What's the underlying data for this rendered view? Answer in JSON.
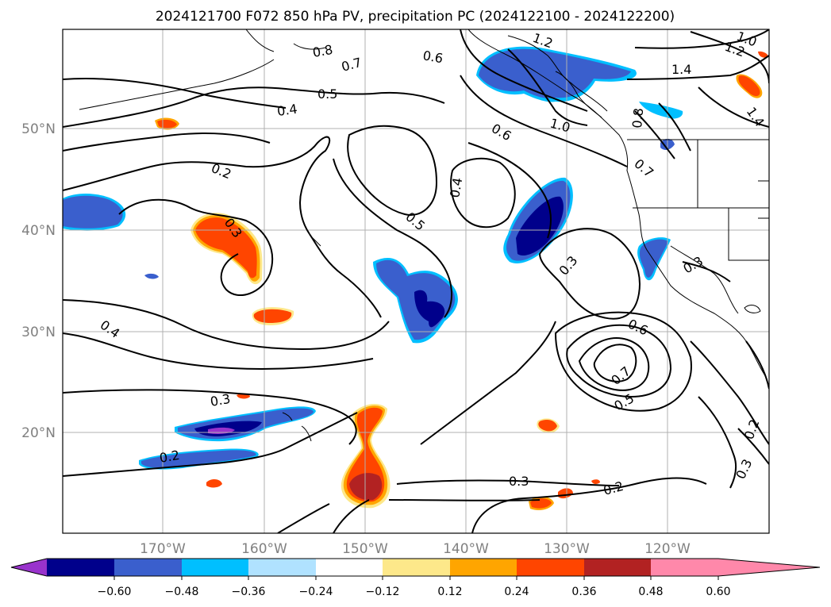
{
  "title": "2024121700 F072 850 hPa PV, precipitation PC (2024122100 - 2024122200)",
  "longitude_ticks": [
    "170°W",
    "160°W",
    "150°W",
    "140°W",
    "130°W",
    "120°W"
  ],
  "latitude_ticks": [
    "50°N",
    "40°N",
    "30°N",
    "20°N"
  ],
  "colorbar": {
    "tick_labels": [
      "−0.60",
      "−0.48",
      "−0.36",
      "−0.24",
      "−0.12",
      "0.12",
      "0.24",
      "0.36",
      "0.48",
      "0.60"
    ],
    "colors": [
      "#9933cc",
      "#00008b",
      "#3a5fcd",
      "#00bfff",
      "#b0e2ff",
      "#ffffff",
      "#fde88a",
      "#ffa500",
      "#ff4500",
      "#b22222",
      "#ff88aa"
    ]
  },
  "contour_labels": {
    "l1": "0.8",
    "l2": "0.7",
    "l3": "0.6",
    "l4": "1.2",
    "l5": "1.0",
    "l6": "1.2",
    "l7": "1.4",
    "l8": "1.4",
    "l9": "0.5",
    "l10": "0.4",
    "l11": "0.6",
    "l12": "1.0",
    "l13": "0.8",
    "l14": "0.7",
    "l15": "0.2",
    "l16": "0.3",
    "l17": "0.5",
    "l18": "0.4",
    "l19": "0.3",
    "l20": "0.3",
    "l21": "0.4",
    "l22": "0.6",
    "l23": "0.7",
    "l24": "0.5",
    "l25": "0.3",
    "l26": "0.2",
    "l27": "0.3",
    "l28": "0.2",
    "l29": "0.2",
    "l30": "0.3"
  }
}
